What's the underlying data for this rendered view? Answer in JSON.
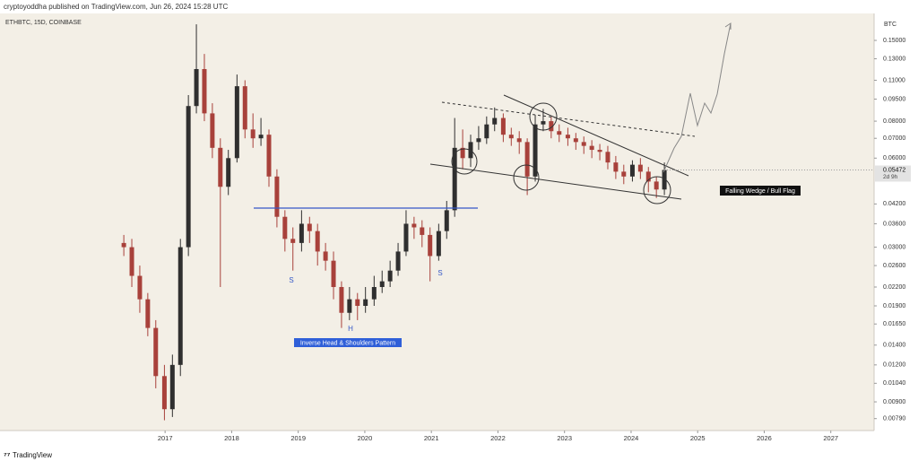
{
  "header": "cryptoyoddha published on TradingView.com, Jun 26, 2024 15:28 UTC",
  "footer": "TradingView",
  "chart_data": {
    "type": "candlestick",
    "symbol": "ETHBTC, 15D, COINBASE",
    "currency": "BTC",
    "log_scale": true,
    "grid": false,
    "up_color": "#2f2f2f",
    "down_color": "#a8413b",
    "last_price": 0.05472,
    "countdown": "2d 9h",
    "annotations": {
      "left_shoulder": "S",
      "head": "H",
      "right_shoulder": "S",
      "pattern_1": "Inverse Head & Shoulders Pattern",
      "pattern_2": "Falling Wedge / Bull Flag"
    },
    "xlim": [
      2014.52,
      2027.65
    ],
    "xticks": [
      2017,
      2018,
      2019,
      2020,
      2021,
      2022,
      2023,
      2024,
      2025,
      2026,
      2027
    ],
    "ylim": [
      0.0072,
      0.185
    ],
    "yticks": [
      {
        "value": 0.15,
        "label": "0.15000"
      },
      {
        "value": 0.13,
        "label": "0.13000"
      },
      {
        "value": 0.11,
        "label": "0.11000"
      },
      {
        "value": 0.095,
        "label": "0.09500"
      },
      {
        "value": 0.08,
        "label": "0.08000"
      },
      {
        "value": 0.07,
        "label": "0.07000"
      },
      {
        "value": 0.06,
        "label": "0.06000"
      },
      {
        "value": 0.042,
        "label": "0.04200"
      },
      {
        "value": 0.036,
        "label": "0.03600"
      },
      {
        "value": 0.03,
        "label": "0.03000"
      },
      {
        "value": 0.026,
        "label": "0.02600"
      },
      {
        "value": 0.022,
        "label": "0.02200"
      },
      {
        "value": 0.019,
        "label": "0.01900"
      },
      {
        "value": 0.0165,
        "label": "0.01650"
      },
      {
        "value": 0.014,
        "label": "0.01400"
      },
      {
        "value": 0.012,
        "label": "0.01200"
      },
      {
        "value": 0.0104,
        "label": "0.01040"
      },
      {
        "value": 0.009,
        "label": "0.00900"
      },
      {
        "value": 0.0079,
        "label": "0.00790"
      }
    ],
    "x": [
      2016.38,
      2016.5,
      2016.62,
      2016.74,
      2016.86,
      2016.99,
      2017.11,
      2017.23,
      2017.35,
      2017.47,
      2017.59,
      2017.71,
      2017.83,
      2017.95,
      2018.08,
      2018.2,
      2018.32,
      2018.44,
      2018.56,
      2018.68,
      2018.8,
      2018.92,
      2019.05,
      2019.17,
      2019.29,
      2019.41,
      2019.53,
      2019.65,
      2019.77,
      2019.89,
      2020.01,
      2020.14,
      2020.26,
      2020.38,
      2020.5,
      2020.62,
      2020.74,
      2020.86,
      2020.98,
      2021.11,
      2021.23,
      2021.35,
      2021.47,
      2021.59,
      2021.71,
      2021.83,
      2021.95,
      2022.08,
      2022.2,
      2022.32,
      2022.44,
      2022.56,
      2022.68,
      2022.8,
      2022.92,
      2023.05,
      2023.17,
      2023.29,
      2023.41,
      2023.53,
      2023.65,
      2023.77,
      2023.89,
      2024.02,
      2024.14,
      2024.26,
      2024.38,
      2024.5
    ],
    "ohlc": [
      [
        0.031,
        0.033,
        0.028,
        0.03
      ],
      [
        0.03,
        0.032,
        0.022,
        0.024
      ],
      [
        0.024,
        0.026,
        0.018,
        0.02
      ],
      [
        0.02,
        0.021,
        0.015,
        0.016
      ],
      [
        0.016,
        0.017,
        0.01,
        0.011
      ],
      [
        0.011,
        0.012,
        0.0078,
        0.0085
      ],
      [
        0.0085,
        0.013,
        0.008,
        0.012
      ],
      [
        0.012,
        0.032,
        0.011,
        0.03
      ],
      [
        0.03,
        0.098,
        0.028,
        0.09
      ],
      [
        0.09,
        0.17,
        0.085,
        0.12
      ],
      [
        0.12,
        0.135,
        0.08,
        0.085
      ],
      [
        0.085,
        0.092,
        0.06,
        0.065
      ],
      [
        0.065,
        0.07,
        0.022,
        0.048
      ],
      [
        0.048,
        0.064,
        0.045,
        0.06
      ],
      [
        0.06,
        0.115,
        0.058,
        0.105
      ],
      [
        0.105,
        0.11,
        0.07,
        0.075
      ],
      [
        0.075,
        0.085,
        0.065,
        0.07
      ],
      [
        0.07,
        0.082,
        0.066,
        0.072
      ],
      [
        0.072,
        0.075,
        0.048,
        0.052
      ],
      [
        0.052,
        0.055,
        0.035,
        0.038
      ],
      [
        0.038,
        0.04,
        0.029,
        0.032
      ],
      [
        0.032,
        0.035,
        0.025,
        0.031
      ],
      [
        0.031,
        0.04,
        0.029,
        0.036
      ],
      [
        0.036,
        0.038,
        0.031,
        0.034
      ],
      [
        0.034,
        0.036,
        0.026,
        0.029
      ],
      [
        0.029,
        0.031,
        0.025,
        0.027
      ],
      [
        0.027,
        0.029,
        0.02,
        0.022
      ],
      [
        0.022,
        0.023,
        0.016,
        0.018
      ],
      [
        0.018,
        0.022,
        0.017,
        0.02
      ],
      [
        0.02,
        0.021,
        0.017,
        0.019
      ],
      [
        0.019,
        0.022,
        0.018,
        0.02
      ],
      [
        0.02,
        0.024,
        0.019,
        0.022
      ],
      [
        0.022,
        0.025,
        0.021,
        0.023
      ],
      [
        0.023,
        0.027,
        0.022,
        0.025
      ],
      [
        0.025,
        0.031,
        0.024,
        0.029
      ],
      [
        0.029,
        0.04,
        0.028,
        0.036
      ],
      [
        0.036,
        0.038,
        0.032,
        0.035
      ],
      [
        0.035,
        0.037,
        0.03,
        0.033
      ],
      [
        0.033,
        0.035,
        0.023,
        0.028
      ],
      [
        0.028,
        0.036,
        0.027,
        0.034
      ],
      [
        0.034,
        0.043,
        0.032,
        0.04
      ],
      [
        0.04,
        0.082,
        0.038,
        0.065
      ],
      [
        0.065,
        0.075,
        0.055,
        0.06
      ],
      [
        0.06,
        0.072,
        0.056,
        0.068
      ],
      [
        0.068,
        0.077,
        0.064,
        0.07
      ],
      [
        0.07,
        0.083,
        0.067,
        0.078
      ],
      [
        0.078,
        0.089,
        0.074,
        0.082
      ],
      [
        0.082,
        0.085,
        0.068,
        0.072
      ],
      [
        0.072,
        0.076,
        0.066,
        0.07
      ],
      [
        0.07,
        0.074,
        0.062,
        0.068
      ],
      [
        0.068,
        0.07,
        0.045,
        0.052
      ],
      [
        0.052,
        0.084,
        0.05,
        0.078
      ],
      [
        0.078,
        0.088,
        0.074,
        0.08
      ],
      [
        0.08,
        0.083,
        0.07,
        0.074
      ],
      [
        0.074,
        0.078,
        0.068,
        0.072
      ],
      [
        0.072,
        0.076,
        0.066,
        0.07
      ],
      [
        0.07,
        0.073,
        0.064,
        0.068
      ],
      [
        0.068,
        0.071,
        0.062,
        0.066
      ],
      [
        0.066,
        0.069,
        0.06,
        0.064
      ],
      [
        0.064,
        0.067,
        0.059,
        0.063
      ],
      [
        0.063,
        0.066,
        0.055,
        0.058
      ],
      [
        0.058,
        0.061,
        0.051,
        0.054
      ],
      [
        0.054,
        0.057,
        0.049,
        0.052
      ],
      [
        0.052,
        0.059,
        0.05,
        0.057
      ],
      [
        0.057,
        0.06,
        0.051,
        0.054
      ],
      [
        0.054,
        0.056,
        0.046,
        0.05
      ],
      [
        0.05,
        0.052,
        0.044,
        0.047
      ],
      [
        0.047,
        0.058,
        0.045,
        0.05472
      ]
    ]
  }
}
